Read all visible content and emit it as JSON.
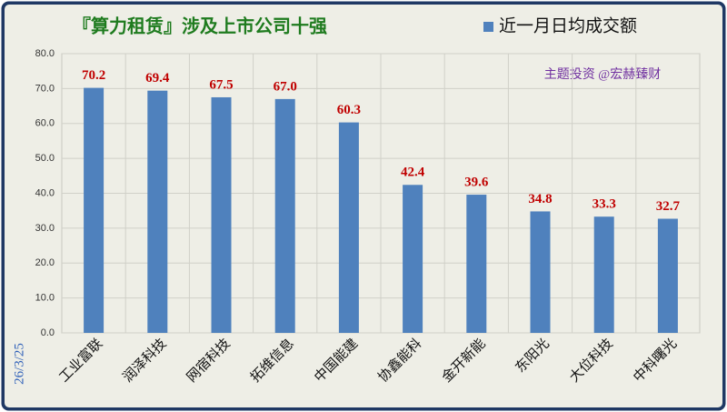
{
  "chart_data": {
    "type": "bar",
    "title": "『算力租赁』涉及上市公司十强",
    "categories": [
      "工业富联",
      "润泽科技",
      "网宿科技",
      "拓维信息",
      "中国能建",
      "协鑫能科",
      "金开新能",
      "东阳光",
      "大位科技",
      "中科曙光"
    ],
    "series": [
      {
        "name": "近一月日均成交额",
        "color": "#4f81bd",
        "values": [
          70.2,
          69.4,
          67.5,
          67.0,
          60.3,
          42.4,
          39.6,
          34.8,
          33.3,
          32.7
        ],
        "value_labels": [
          "70.2",
          "69.4",
          "67.5",
          "67.0",
          "60.3",
          "42.4",
          "39.6",
          "34.8",
          "33.3",
          "32.7"
        ]
      }
    ],
    "ylim": [
      0,
      80
    ],
    "yticks": [
      {
        "value": 0,
        "label": "0.0"
      },
      {
        "value": 10,
        "label": "10.0"
      },
      {
        "value": 20,
        "label": "20.0"
      },
      {
        "value": 30,
        "label": "30.0"
      },
      {
        "value": 40,
        "label": "40.0"
      },
      {
        "value": 50,
        "label": "50.0"
      },
      {
        "value": 60,
        "label": "60.0"
      },
      {
        "value": 70,
        "label": "70.0"
      },
      {
        "value": 80,
        "label": "80.0"
      }
    ],
    "grid": true,
    "annotation": "主题投资 @宏赫臻财",
    "date_note": "26/3/25"
  }
}
